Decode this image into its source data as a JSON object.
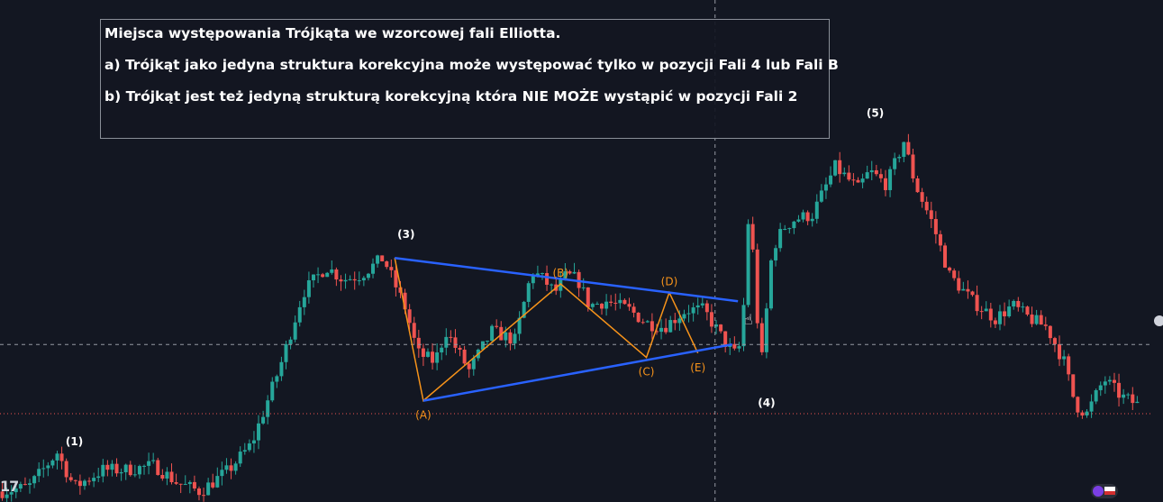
{
  "annotation": {
    "lines": [
      "Miejsca występowania Trójkąta we wzorcowej fali Elliotta.",
      "a) Trójkąt jako jedyna struktura korekcyjna może występować tylko w pozycji Fali 4 lub Fali B",
      "b) Trójkąt jest też jedyną strukturą korekcyjną która NIE MOŻE wystąpić w pozycji Fali 2"
    ]
  },
  "colors": {
    "background": "#131722",
    "up": "#26a69a",
    "down": "#ef5350",
    "trendline": "#2962ff",
    "subwave": "#f7931a",
    "wave_label": "#ffffff",
    "crosshair": "#9598a1",
    "price_line": "#ef5350"
  },
  "icons": [
    "tradingview-logo-icon",
    "price-axis-handle-icon",
    "hand-cursor-icon",
    "broker-badge-icon"
  ],
  "chart_data": {
    "type": "candlestick",
    "title": "",
    "xlabel": "",
    "ylabel": "",
    "grid": false,
    "legend": "none",
    "ylim": [
      0,
      100
    ],
    "xlim": [
      0,
      200
    ],
    "price_series": {
      "x": [
        0,
        5,
        10,
        13,
        18,
        22,
        27,
        31,
        35,
        40,
        44,
        49,
        53,
        57,
        60,
        63,
        67,
        71,
        73,
        76,
        78,
        82,
        86,
        90,
        93,
        95,
        97,
        99,
        101,
        103,
        106,
        110,
        113,
        116,
        120,
        123,
        125,
        127,
        129,
        130,
        131,
        133,
        135,
        137,
        139,
        142,
        146,
        150,
        152,
        155,
        158,
        160,
        163,
        166,
        170,
        174,
        177,
        180,
        183,
        186,
        188,
        190,
        193,
        196,
        199
      ],
      "y": [
        2,
        3,
        11,
        3,
        7,
        7,
        8,
        4,
        2,
        7,
        13,
        31,
        48,
        54,
        51,
        52,
        56,
        44,
        34,
        32,
        39,
        30,
        39,
        37,
        53,
        51,
        48,
        52,
        51,
        45,
        46,
        44,
        41,
        40,
        44,
        44,
        40,
        36,
        33,
        45,
        69,
        30,
        58,
        63,
        65,
        66,
        77,
        72,
        76,
        73,
        83,
        73,
        64,
        52,
        46,
        42,
        45,
        42,
        40,
        32,
        22,
        20,
        28,
        24,
        22
      ]
    },
    "wave_labels": [
      {
        "label": "(1)",
        "x": 13,
        "y": 11
      },
      {
        "label": "(3)",
        "x": 71,
        "y": 59
      },
      {
        "label": "(4)",
        "x": 134,
        "y": 20
      },
      {
        "label": "(5)",
        "x": 153,
        "y": 87
      }
    ],
    "triangle_points": [
      {
        "label": "(3)",
        "x": 69,
        "y": 56,
        "show": false
      },
      {
        "label": "(A)",
        "x": 74,
        "y": 23,
        "show": true
      },
      {
        "label": "(B)",
        "x": 98,
        "y": 50,
        "show": true
      },
      {
        "label": "(C)",
        "x": 113,
        "y": 33,
        "show": true
      },
      {
        "label": "(D)",
        "x": 117,
        "y": 48,
        "show": true
      },
      {
        "label": "(E)",
        "x": 122,
        "y": 34,
        "show": true
      }
    ],
    "trendlines": [
      {
        "name": "upper",
        "from": [
          69,
          56
        ],
        "to": [
          129,
          46
        ]
      },
      {
        "name": "lower",
        "from": [
          74,
          23
        ],
        "to": [
          128,
          36
        ]
      }
    ],
    "crosshair": {
      "x": 125,
      "y": 36
    },
    "price_line_y": 20
  }
}
